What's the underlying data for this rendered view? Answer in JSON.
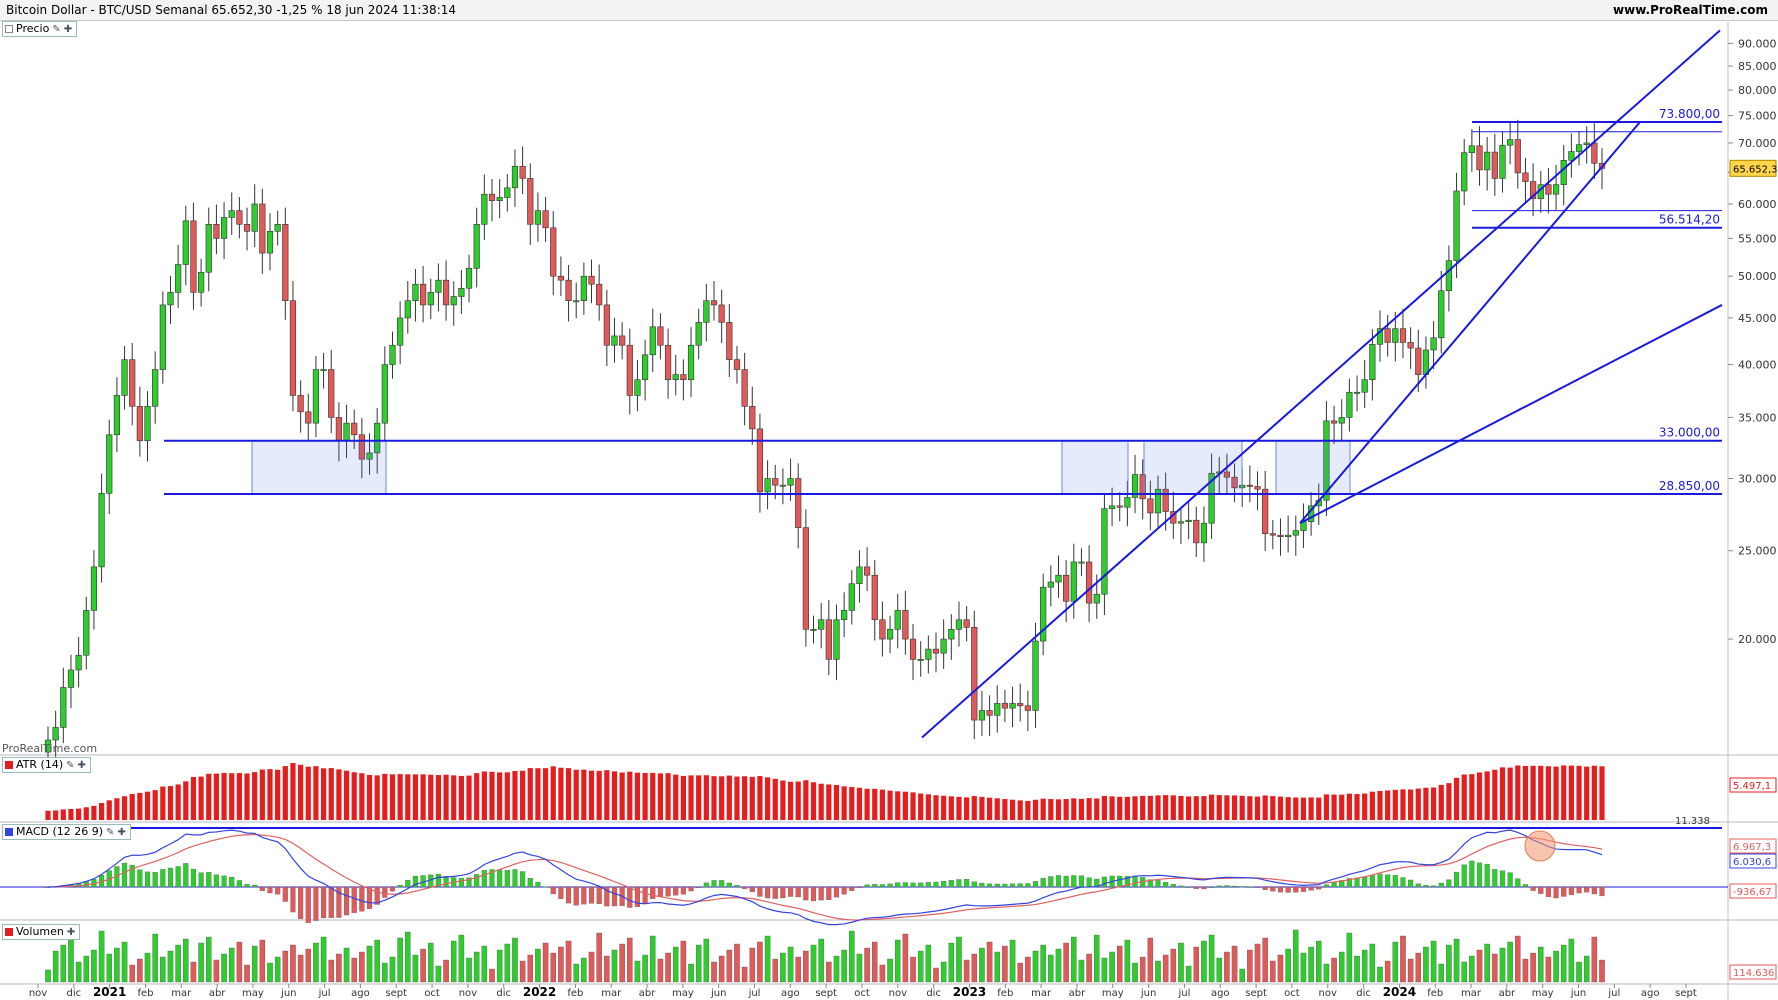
{
  "header": {
    "title": "Bitcoin Dollar - BTC/USD Semanal 65.652,30 -1,25 % 18 jun 2024 11:38:14",
    "site": "www.ProRealTime.com",
    "watermark": "ProRealTime.com"
  },
  "panels": {
    "price": {
      "label": "Precio"
    },
    "atr": {
      "label": "ATR (14)",
      "value": "5.497,1",
      "ref_level": "11.338"
    },
    "macd": {
      "label": "MACD (12 26 9)",
      "value_signal": "6.967,3",
      "value_macd": "6.030,6",
      "value_hist": "-936,67"
    },
    "volume": {
      "label": "Volumen",
      "value": "114.636"
    }
  },
  "colors": {
    "up": "#2ecc2e",
    "down": "#e05a5a",
    "line": "#1a1adf",
    "atr": "#e41e1e",
    "macd_line": "#3344dd",
    "signal_line": "#e06060",
    "price_tag": "#ffd54a"
  },
  "chart_data": {
    "type": "candlestick",
    "title": "Bitcoin Dollar - BTC/USD Semanal",
    "scale": "log",
    "ylim": [
      15000,
      95000
    ],
    "y_ticks": [
      "90.000",
      "85.000",
      "80.000",
      "75.000",
      "70.000",
      "65.000",
      "60.000",
      "55.000",
      "50.000",
      "45.000",
      "40.000",
      "35.000",
      "30.000",
      "25.000",
      "20.000"
    ],
    "y_tick_values": [
      90000,
      85000,
      80000,
      75000,
      70000,
      65000,
      60000,
      55000,
      50000,
      45000,
      40000,
      35000,
      30000,
      25000,
      20000
    ],
    "x_month_labels": [
      "nov",
      "dic",
      "2021",
      "feb",
      "mar",
      "abr",
      "may",
      "jun",
      "jul",
      "ago",
      "sept",
      "oct",
      "nov",
      "dic",
      "2022",
      "feb",
      "mar",
      "abr",
      "may",
      "jun",
      "jul",
      "ago",
      "sept",
      "oct",
      "nov",
      "dic",
      "2023",
      "feb",
      "mar",
      "abr",
      "may",
      "jun",
      "jul",
      "ago",
      "sept",
      "oct",
      "nov",
      "dic",
      "2024",
      "feb",
      "mar",
      "abr",
      "may",
      "jun",
      "jul",
      "ago",
      "sept"
    ],
    "last_price": "65.652,30",
    "horizontal_levels": [
      {
        "label": "73.800,00",
        "value": 73800
      },
      {
        "label": "56.514,20",
        "value": 56514.2
      },
      {
        "label": "33.000,00",
        "value": 33000
      },
      {
        "label": "28.850,00",
        "value": 28850
      }
    ],
    "weekly_close": [
      15500,
      16000,
      17700,
      18500,
      19200,
      21500,
      24000,
      28900,
      33500,
      37000,
      40500,
      36000,
      33000,
      36000,
      39500,
      46500,
      48000,
      51500,
      57500,
      48000,
      50500,
      57000,
      55000,
      58000,
      59000,
      57000,
      56000,
      60000,
      53000,
      56000,
      57000,
      47000,
      37000,
      35500,
      34500,
      39500,
      39500,
      35000,
      33000,
      34500,
      33500,
      31500,
      32000,
      34500,
      40000,
      42000,
      45000,
      47000,
      49000,
      46500,
      48000,
      49500,
      46500,
      47500,
      48500,
      51000,
      57000,
      61500,
      60500,
      61000,
      62500,
      66000,
      64000,
      57000,
      59000,
      56500,
      50000,
      49500,
      47000,
      47000,
      50000,
      49000,
      46500,
      42000,
      43000,
      42000,
      37000,
      38500,
      41000,
      44000,
      42000,
      38500,
      39000,
      38500,
      42000,
      44500,
      47000,
      46500,
      44500,
      40500,
      39500,
      36000,
      34000,
      29000,
      30000,
      29500,
      29500,
      30000,
      26500,
      20500,
      20500,
      21000,
      19000,
      21000,
      21500,
      23000,
      24000,
      23500,
      21000,
      20000,
      20500,
      21500,
      20000,
      19000,
      19000,
      19500,
      19300,
      20000,
      20500,
      21000,
      20600,
      16300,
      16700,
      16500,
      17000,
      16800,
      17000,
      16900,
      16700,
      19900,
      22800,
      23100,
      23500,
      22000,
      24300,
      24300,
      21900,
      22400,
      27800,
      28000,
      27900,
      28600,
      30300,
      28500,
      27500,
      29200,
      27600,
      26800,
      26900,
      27000,
      25500,
      26800,
      30400,
      30500,
      30100,
      29300,
      29500,
      29400,
      29200,
      26100,
      26000,
      25900,
      26000,
      26300,
      26900,
      28000,
      28400,
      34700,
      34500,
      35000,
      37300,
      37300,
      38500,
      42100,
      43800,
      42300,
      43800,
      42300,
      41700,
      39000,
      41500,
      42800,
      48200,
      52000,
      62000,
      68300,
      69500,
      65400,
      68400,
      64000,
      69600,
      70600,
      64900,
      63500,
      60800,
      63000,
      61500,
      63000,
      67000,
      68500,
      69700,
      70000,
      66500,
      65652
    ]
  }
}
